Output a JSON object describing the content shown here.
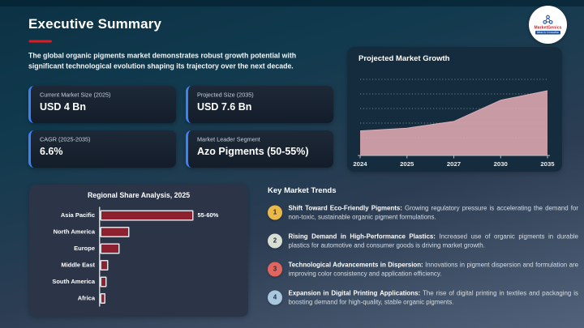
{
  "header": {
    "title": "Executive Summary"
  },
  "logo": {
    "brand": "MarketGenics",
    "tagline": "Ideas to Innovation"
  },
  "intro": {
    "text": "The global organic pigments market demonstrates robust growth potential with significant technological evolution shaping its trajectory over the next decade."
  },
  "stats": {
    "cards": [
      {
        "label": "Current Market Size (2025)",
        "value": "USD 4 Bn"
      },
      {
        "label": "Projected Size (2035)",
        "value": "USD 7.6 Bn"
      },
      {
        "label": "CAGR (2025-2035)",
        "value": "6.6%"
      },
      {
        "label": "Market Leader Segment",
        "value": "Azo Pigments (50-55%)"
      }
    ]
  },
  "growth_panel": {
    "title": "Projected Market Growth"
  },
  "regional_panel": {
    "title": "Regional Share Analysis, 2025"
  },
  "trends": {
    "heading": "Key Market Trends",
    "items": [
      {
        "num": "1",
        "color": "#e9b949",
        "lead": "Shift Toward Eco-Friendly Pigments:",
        "text": "Growing regulatory pressure is accelerating the demand for non-toxic, sustainable organic pigment formulations."
      },
      {
        "num": "2",
        "color": "#d9ded3",
        "lead": "Rising Demand in High-Performance Plastics:",
        "text": "Increased use of organic pigments in durable plastics for automotive and consumer goods is driving market growth."
      },
      {
        "num": "3",
        "color": "#e0655f",
        "lead": "Technological Advancements in Dispersion:",
        "text": "Innovations in pigment dispersion and formulation are improving color consistency and application efficiency."
      },
      {
        "num": "4",
        "color": "#a9c7de",
        "lead": "Expansion in Digital Printing Applications:",
        "text": "The rise of digital printing in textiles and packaging is boosting demand for high-quality, stable organic pigments."
      }
    ]
  },
  "chart_data": [
    {
      "type": "area",
      "title": "Projected Market Growth",
      "x": [
        "2024",
        "2025",
        "2027",
        "2030",
        "2035"
      ],
      "values": [
        4.0,
        4.25,
        4.85,
        6.75,
        7.6
      ],
      "unit": "USD Bn",
      "axis_range": [
        1.8,
        7.6
      ],
      "fill": "#c89ba4",
      "grid": "horizontal-dotted",
      "xlabel": "",
      "ylabel": ""
    },
    {
      "type": "bar",
      "title": "Regional Share Analysis, 2025",
      "orientation": "horizontal",
      "categories": [
        "Asia Pacific",
        "North America",
        "Europe",
        "Middle East",
        "South America",
        "Africa"
      ],
      "values": [
        57.5,
        18,
        12,
        5,
        4,
        3.3
      ],
      "value_labels": [
        "55-60%",
        "",
        "",
        "",
        "",
        ""
      ],
      "bar_color": "#8e2130",
      "xlim": [
        0,
        60
      ]
    }
  ],
  "colors": {
    "accent_red": "#df1b21",
    "card_accent_blue": "#3b82f6",
    "area_fill": "#c89ba4",
    "bar_fill": "#8e2130",
    "panel_dark": "#142c3d",
    "panel_slate": "#2b3547"
  }
}
